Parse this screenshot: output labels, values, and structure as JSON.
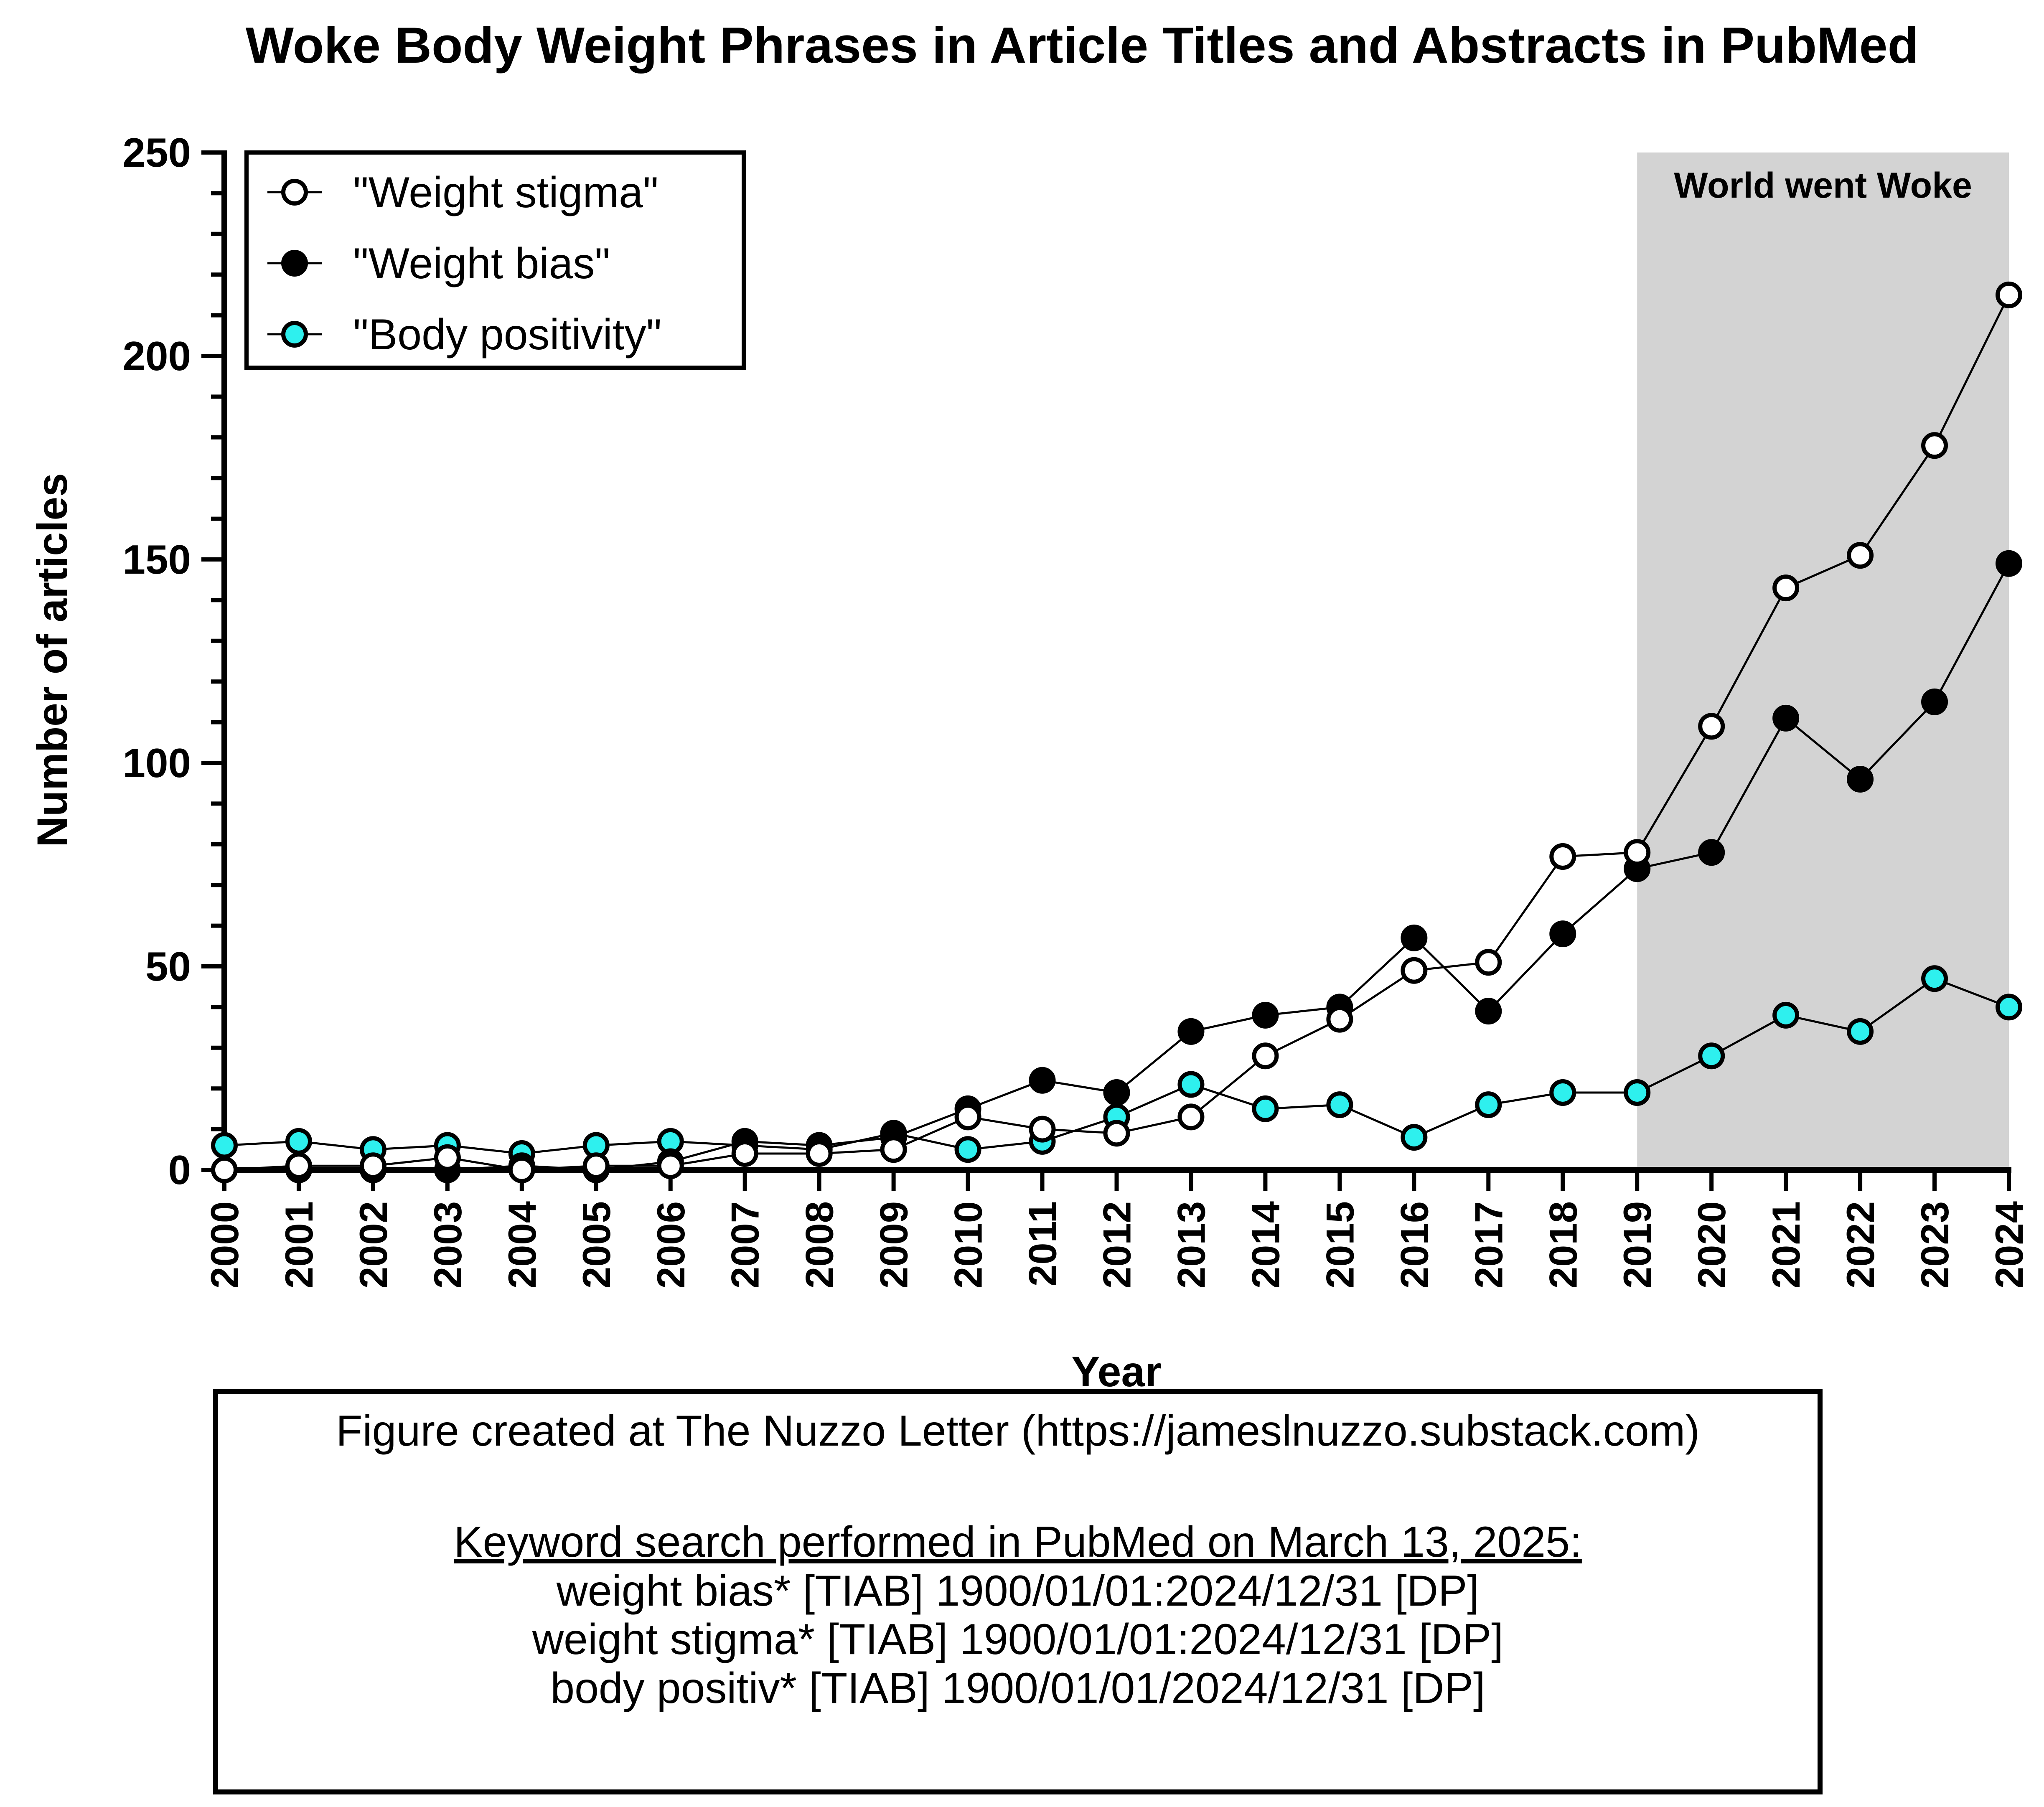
{
  "chart_data": {
    "type": "line",
    "title": "Woke Body Weight Phrases in Article Titles and Abstracts in PubMed",
    "xlabel": "Year",
    "ylabel": "Number of articles",
    "ylim": [
      0,
      250
    ],
    "y_ticks": [
      "0",
      "50",
      "100",
      "150",
      "200",
      "250"
    ],
    "categories": [
      "2000",
      "2001",
      "2002",
      "2003",
      "2004",
      "2005",
      "2006",
      "2007",
      "2008",
      "2009",
      "2010",
      "2011",
      "2012",
      "2013",
      "2014",
      "2015",
      "2016",
      "2017",
      "2018",
      "2019",
      "2020",
      "2021",
      "2022",
      "2023",
      "2024"
    ],
    "series": [
      {
        "name": "\"Weight stigma\"",
        "marker": "open-circle",
        "color": "#ffffff",
        "values": [
          0,
          1,
          1,
          3,
          0,
          1,
          1,
          4,
          4,
          5,
          13,
          10,
          9,
          13,
          28,
          37,
          49,
          51,
          77,
          78,
          109,
          143,
          151,
          178,
          215
        ]
      },
      {
        "name": "\"Weight bias\"",
        "marker": "filled-circle",
        "color": "#000000",
        "values": [
          0,
          0,
          0,
          0,
          1,
          0,
          2,
          7,
          6,
          8,
          15,
          22,
          19,
          34,
          38,
          40,
          57,
          39,
          58,
          74,
          78,
          111,
          96,
          115,
          149
        ]
      },
      {
        "name": "\"Body positivity\"",
        "marker": "cyan-circle",
        "color": "#2ef0ee",
        "values": [
          6,
          7,
          5,
          6,
          4,
          6,
          7,
          6,
          5,
          9,
          5,
          7,
          13,
          21,
          15,
          16,
          8,
          16,
          19,
          19,
          28,
          38,
          34,
          47,
          40
        ]
      }
    ],
    "shaded_region": {
      "from": "2019",
      "to": "2024",
      "label": "World went Woke",
      "color": "#d3d3d3"
    },
    "legend_position": "top-left",
    "grid": false
  },
  "note": {
    "credit": "Figure created at The Nuzzo Letter (https://jameslnuzzo.substack.com)",
    "search_heading": "Keyword search performed in PubMed on March 13, 2025:",
    "queries": [
      "weight bias* [TIAB] 1900/01/01:2024/12/31 [DP]",
      "weight stigma* [TIAB] 1900/01/01:2024/12/31 [DP]",
      "body positiv* [TIAB] 1900/01/01/2024/12/31 [DP]"
    ]
  }
}
